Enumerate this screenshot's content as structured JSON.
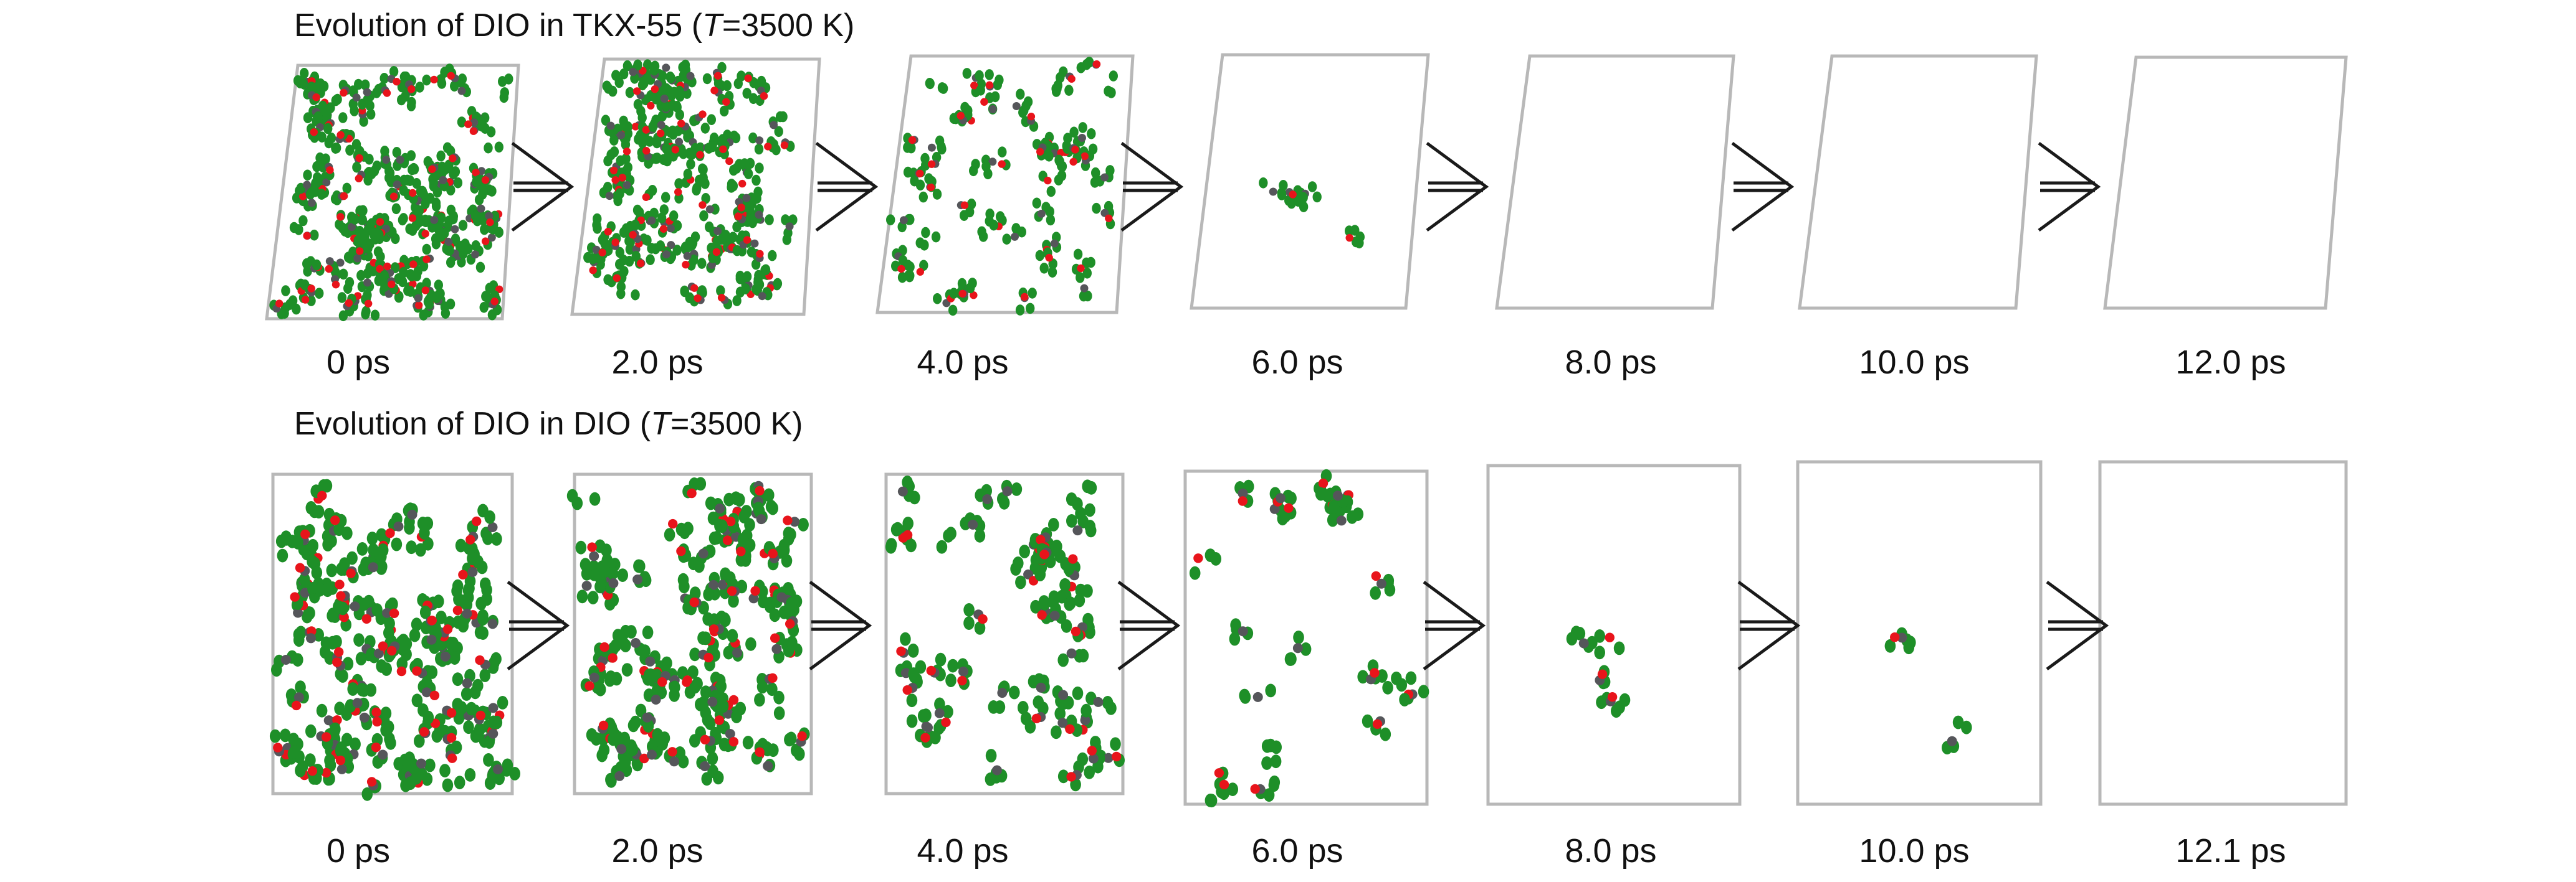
{
  "colors": {
    "background": "#ffffff",
    "cell_border": "#b8b8b8",
    "arrow": "#1a1a1a",
    "atom_green": "#1e8f28",
    "atom_red": "#e8141b",
    "atom_gray": "#55565a",
    "text": "#111111"
  },
  "rows": [
    {
      "id": "tkx55",
      "title_parts": [
        "Evolution of DIO in TKX-55 (",
        "T",
        "=3500 K)"
      ],
      "frames": [
        {
          "time": "0 ps",
          "density": 1.0
        },
        {
          "time": "2.0 ps",
          "density": 0.85
        },
        {
          "time": "4.0 ps",
          "density": 0.4
        },
        {
          "time": "6.0 ps",
          "density": 0.03
        },
        {
          "time": "8.0 ps",
          "density": 0
        },
        {
          "time": "10.0 ps",
          "density": 0
        },
        {
          "time": "12.0 ps",
          "density": 0
        }
      ]
    },
    {
      "id": "dio",
      "title_parts": [
        "Evolution of DIO in DIO (",
        "T",
        "=3500 K)"
      ],
      "frames": [
        {
          "time": "0 ps",
          "density": 1.0
        },
        {
          "time": "2.0 ps",
          "density": 0.9
        },
        {
          "time": "4.0 ps",
          "density": 0.45
        },
        {
          "time": "6.0 ps",
          "density": 0.22
        },
        {
          "time": "8.0 ps",
          "density": 0.04
        },
        {
          "time": "10.0 ps",
          "density": 0.02
        },
        {
          "time": "12.1 ps",
          "density": 0
        }
      ]
    }
  ]
}
